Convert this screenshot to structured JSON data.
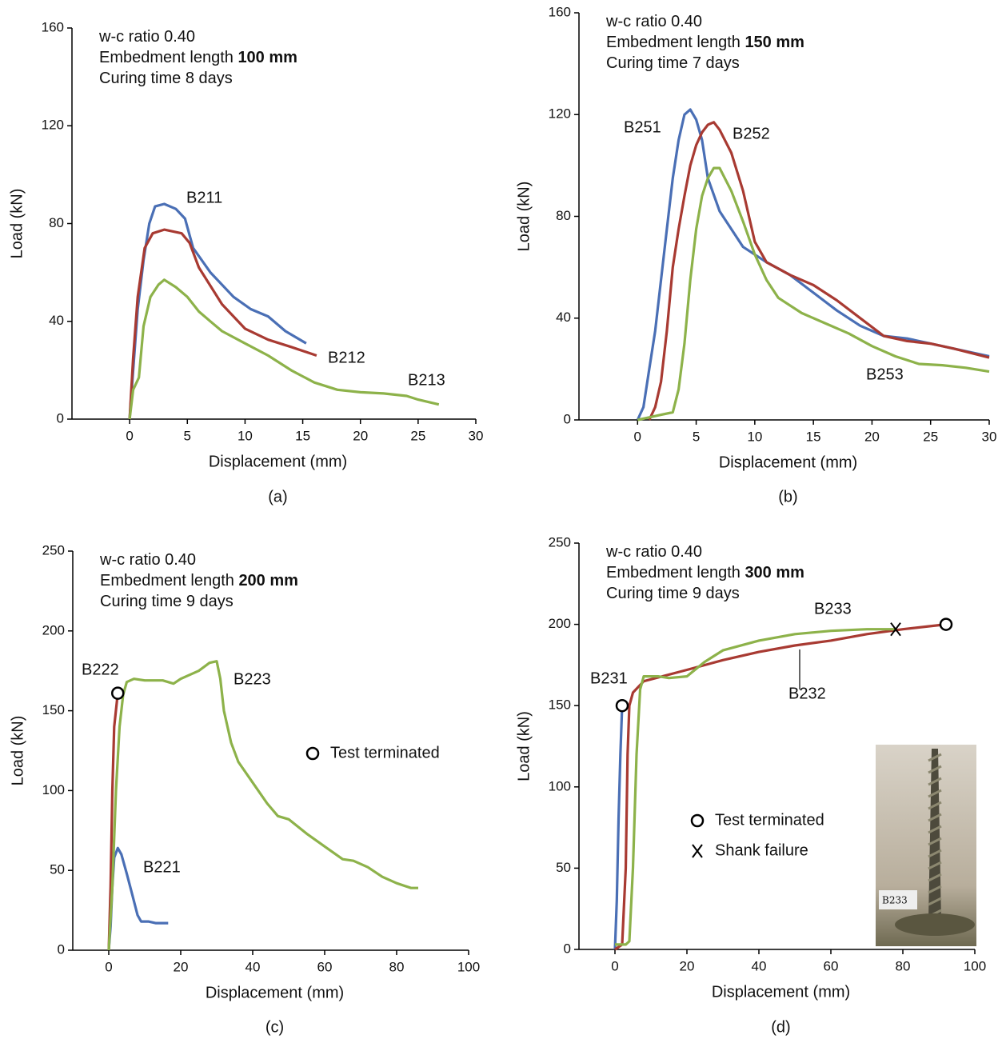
{
  "chart_data": [
    {
      "type": "line",
      "caption": "(a)",
      "x_label": "Displacement (mm)",
      "y_label": "Load (kN)",
      "annotations": [
        {
          "text": "w-c ratio 0.40"
        },
        {
          "text": "Embedment length ",
          "bold": "100 mm"
        },
        {
          "text": "Curing time 8 days"
        }
      ],
      "xlim": [
        -5,
        30
      ],
      "xticks": [
        0,
        5,
        10,
        15,
        20,
        25,
        30
      ],
      "ylim": [
        0,
        160
      ],
      "yticks": [
        0,
        40,
        80,
        120,
        160
      ],
      "series": [
        {
          "name": "B211",
          "color": "#4a6fb5",
          "x": [
            0,
            0.3,
            0.7,
            1.2,
            1.7,
            2.2,
            3,
            4,
            4.8,
            5.5,
            7,
            9,
            10.5,
            12,
            13.5,
            15.3
          ],
          "values": [
            0,
            20,
            45,
            65,
            80,
            87,
            88,
            86,
            82,
            70,
            60,
            50,
            45,
            42,
            36,
            31
          ]
        },
        {
          "name": "B212",
          "color": "#a83a32",
          "x": [
            0,
            0.3,
            0.7,
            1.3,
            2,
            3,
            4.5,
            5.2,
            6,
            8,
            10,
            12,
            14,
            16.2
          ],
          "values": [
            0,
            25,
            50,
            70,
            76,
            77.5,
            76,
            72,
            62,
            47,
            37,
            32.5,
            29.5,
            26
          ]
        },
        {
          "name": "B213",
          "color": "#8db24a",
          "x": [
            0,
            0.3,
            0.8,
            1.2,
            1.8,
            2.5,
            3,
            4,
            5,
            6,
            7,
            8,
            10,
            12,
            14,
            16,
            18,
            20,
            22,
            24,
            25,
            26.8
          ],
          "values": [
            0,
            12,
            17,
            38,
            50,
            55,
            57,
            54,
            50,
            44,
            40,
            36,
            31,
            26,
            20,
            15,
            12,
            11,
            10.5,
            9.5,
            8,
            6
          ]
        }
      ]
    },
    {
      "type": "line",
      "caption": "(b)",
      "x_label": "Displacement (mm)",
      "y_label": "Load (kN)",
      "annotations": [
        {
          "text": "w-c ratio 0.40"
        },
        {
          "text": "Embedment length ",
          "bold": "150 mm"
        },
        {
          "text": "Curing time 7 days"
        }
      ],
      "xlim": [
        -5,
        30
      ],
      "xticks": [
        0,
        5,
        10,
        15,
        20,
        25,
        30
      ],
      "ylim": [
        0,
        160
      ],
      "yticks": [
        0,
        40,
        80,
        120,
        160
      ],
      "series": [
        {
          "name": "B251",
          "color": "#4a6fb5",
          "x": [
            0,
            0.5,
            1,
            1.5,
            2,
            2.5,
            3,
            3.5,
            4,
            4.5,
            5,
            5.5,
            6,
            7,
            8,
            9,
            11,
            13,
            15,
            17,
            19,
            21,
            23,
            25,
            27,
            30
          ],
          "values": [
            0,
            5,
            20,
            35,
            55,
            75,
            95,
            110,
            120,
            122,
            118,
            110,
            95,
            82,
            75,
            68,
            62,
            57,
            50,
            43,
            37,
            33,
            32,
            30,
            28,
            25
          ]
        },
        {
          "name": "B252",
          "color": "#a83a32",
          "x": [
            1,
            1.5,
            2,
            2.5,
            3,
            3.5,
            4,
            4.5,
            5,
            5.5,
            6,
            6.5,
            7,
            8,
            9,
            10,
            11,
            13,
            15,
            17,
            19,
            21,
            23,
            25,
            27,
            30
          ],
          "values": [
            0,
            5,
            15,
            35,
            60,
            75,
            88,
            100,
            108,
            113,
            116,
            117,
            114,
            105,
            90,
            70,
            62,
            57,
            53,
            47,
            40,
            33,
            31,
            30,
            28,
            24.5
          ]
        },
        {
          "name": "B253",
          "color": "#8db24a",
          "x": [
            0,
            1,
            2,
            3,
            3.5,
            4,
            4.5,
            5,
            5.5,
            6,
            6.5,
            7,
            8,
            9,
            10,
            11,
            12,
            14,
            16,
            18,
            20,
            22,
            24,
            26,
            28,
            30
          ],
          "values": [
            0,
            1,
            2,
            3,
            12,
            30,
            55,
            75,
            88,
            95,
            99,
            99,
            90,
            78,
            65,
            55,
            48,
            42,
            38,
            34,
            29,
            25,
            22,
            21.5,
            20.5,
            19
          ]
        }
      ]
    },
    {
      "type": "line",
      "caption": "(c)",
      "x_label": "Displacement (mm)",
      "y_label": "Load (kN)",
      "annotations": [
        {
          "text": "w-c ratio 0.40"
        },
        {
          "text": "Embedment length ",
          "bold": "200 mm"
        },
        {
          "text": "Curing time 9 days"
        }
      ],
      "xlim": [
        -10,
        100
      ],
      "xticks": [
        0,
        20,
        40,
        60,
        80,
        100
      ],
      "ylim": [
        0,
        250
      ],
      "yticks": [
        0,
        50,
        100,
        150,
        200,
        250
      ],
      "series": [
        {
          "name": "B221",
          "color": "#4a6fb5",
          "x": [
            0,
            0.5,
            1,
            1.5,
            2.5,
            3.5,
            5,
            6.5,
            8,
            9,
            11,
            13,
            16.5
          ],
          "values": [
            0,
            15,
            40,
            58,
            64,
            60,
            48,
            35,
            22,
            18,
            18,
            17,
            17
          ]
        },
        {
          "name": "B222",
          "color": "#a83a32",
          "x": [
            0,
            0.5,
            1,
            1.5,
            2.5
          ],
          "values": [
            0,
            40,
            100,
            140,
            161
          ]
        },
        {
          "name": "B223",
          "color": "#8db24a",
          "x": [
            0,
            1,
            2,
            3,
            4,
            5,
            7,
            10,
            15,
            18,
            20,
            25,
            28,
            30,
            31,
            32,
            34,
            36,
            40,
            44,
            47,
            50,
            55,
            60,
            65,
            68,
            72,
            76,
            80,
            84,
            86
          ],
          "values": [
            0,
            40,
            100,
            140,
            160,
            168,
            170,
            169,
            169,
            167,
            170,
            175,
            180,
            181,
            170,
            150,
            130,
            118,
            105,
            92,
            84,
            82,
            73,
            65,
            57,
            56,
            52,
            46,
            42,
            39,
            39
          ]
        }
      ],
      "markers": [
        {
          "name": "Test terminated",
          "symbol": "circle",
          "points": [
            {
              "x": 2.5,
              "y": 161
            }
          ]
        }
      ]
    },
    {
      "type": "line",
      "caption": "(d)",
      "x_label": "Displacement (mm)",
      "y_label": "Load (kN)",
      "annotations": [
        {
          "text": "w-c ratio 0.40"
        },
        {
          "text": "Embedment length ",
          "bold": "300 mm"
        },
        {
          "text": "Curing time 9 days"
        }
      ],
      "xlim": [
        -10,
        100
      ],
      "xticks": [
        0,
        20,
        40,
        60,
        80,
        100
      ],
      "ylim": [
        0,
        250
      ],
      "yticks": [
        0,
        50,
        100,
        150,
        200,
        250
      ],
      "series": [
        {
          "name": "B231",
          "color": "#4a6fb5",
          "x": [
            0,
            0.5,
            1,
            1.5,
            2
          ],
          "values": [
            0,
            30,
            80,
            120,
            150
          ]
        },
        {
          "name": "B232",
          "color": "#a83a32",
          "x": [
            0,
            2,
            3,
            3.5,
            4,
            5,
            8,
            20,
            30,
            40,
            50,
            60,
            70,
            80,
            92
          ],
          "values": [
            0,
            3,
            50,
            120,
            150,
            158,
            165,
            172,
            178,
            183,
            187,
            190,
            194,
            197,
            200
          ]
        },
        {
          "name": "B233",
          "color": "#8db24a",
          "x": [
            0,
            3,
            4,
            5,
            6,
            7,
            8,
            12,
            15,
            20,
            25,
            30,
            40,
            50,
            60,
            70,
            78
          ],
          "values": [
            3,
            3,
            5,
            50,
            120,
            160,
            168,
            168,
            167,
            168,
            177,
            184,
            190,
            194,
            196,
            197,
            197
          ]
        }
      ],
      "markers": [
        {
          "name": "Test terminated",
          "symbol": "circle",
          "points": [
            {
              "x": 2,
              "y": 150
            },
            {
              "x": 92,
              "y": 200
            }
          ]
        },
        {
          "name": "Shank failure",
          "symbol": "cross",
          "points": [
            {
              "x": 78,
              "y": 197
            }
          ]
        }
      ],
      "inset_label": "B233"
    }
  ]
}
